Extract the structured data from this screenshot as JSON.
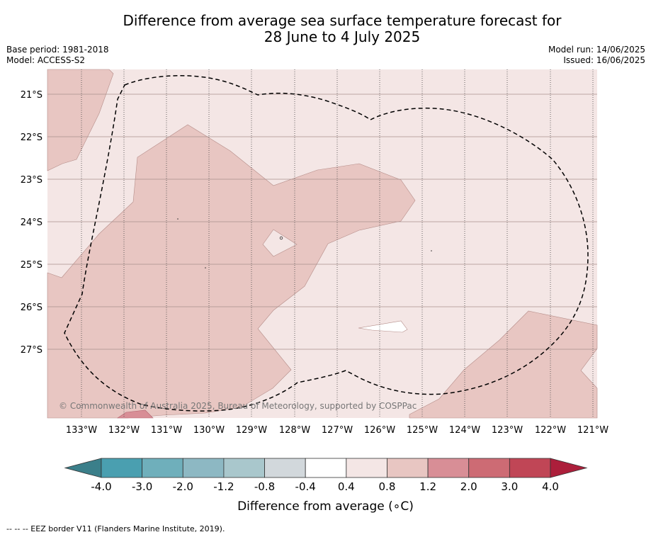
{
  "title_line1": "Difference from average sea surface temperature forecast for",
  "title_line2": "28 June to 4 July 2025",
  "base_period": "Base period: 1981-2018",
  "model": "Model: ACCESS-S2",
  "model_run": "Model run: 14/06/2025",
  "issued": "Issued: 16/06/2025",
  "copyright": "© Commonwealth of Australia 2025, Bureau of Meteorology, supported by COSPPac",
  "lat_labels": [
    "21°S",
    "22°S",
    "23°S",
    "24°S",
    "25°S",
    "26°S",
    "27°S"
  ],
  "lon_labels": [
    "133°W",
    "132°W",
    "131°W",
    "130°W",
    "129°W",
    "128°W",
    "127°W",
    "126°W",
    "125°W",
    "124°W",
    "123°W",
    "122°W",
    "121°W"
  ],
  "colorbar": {
    "labels": [
      "-4.0",
      "-3.0",
      "-2.0",
      "-1.2",
      "-0.8",
      "-0.4",
      "0.4",
      "0.8",
      "1.2",
      "2.0",
      "3.0",
      "4.0"
    ],
    "colors": [
      "#3b7f8a",
      "#4a9fb0",
      "#6fafbb",
      "#8db8c3",
      "#a9c7cc",
      "#d2d8dc",
      "#ffffff",
      "#f4e6e5",
      "#e8c6c2",
      "#d88e96",
      "#cd6b74",
      "#c04656",
      "#ac1f3b"
    ],
    "title": "Difference from average ($^\\circ$C)"
  },
  "footnote": "--  --  -- EEZ border V11 (Flanders Marine Institute, 2019)."
}
